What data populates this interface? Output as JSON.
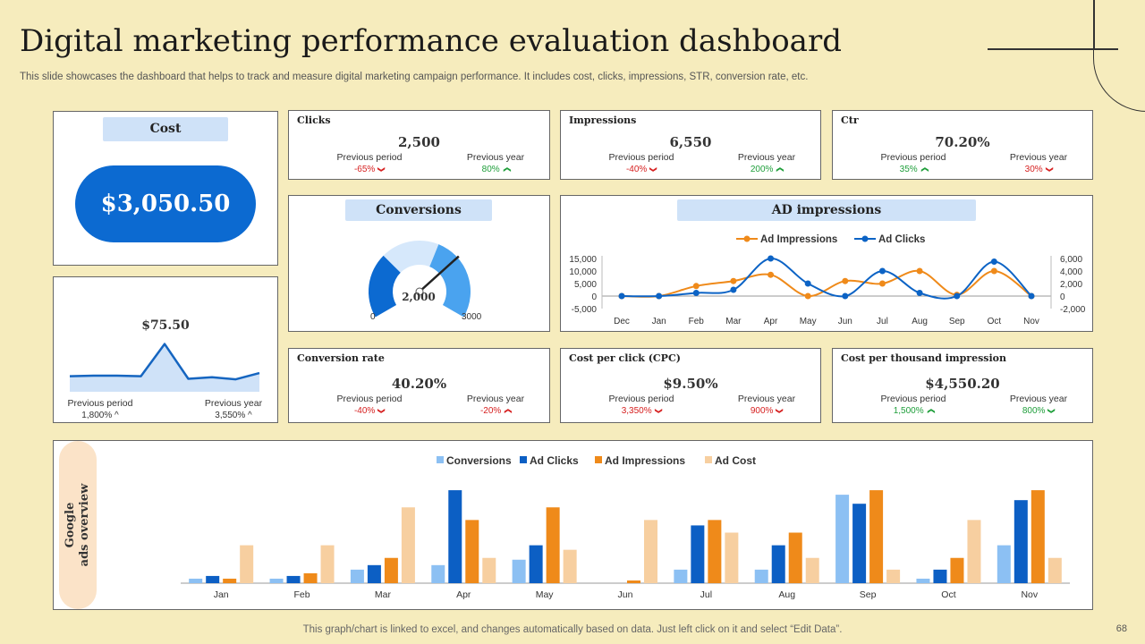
{
  "header": {
    "title": "Digital marketing performance evaluation dashboard",
    "subtitle": "This slide showcases the dashboard that helps to track and measure digital marketing campaign performance. It includes cost, clicks, impressions, STR, conversion rate, etc."
  },
  "cost": {
    "label": "Cost",
    "value": "$3,050.50",
    "color": "#0c6ad1"
  },
  "spark": {
    "value": "$75.50",
    "prev_period_label": "Previous period",
    "prev_period_value": "1,800% ^",
    "prev_year_label": "Previous year",
    "prev_year_value": "3,550% ^",
    "chart_data": {
      "type": "area",
      "values": [
        30,
        31,
        31,
        30,
        92,
        25,
        28,
        24,
        36
      ]
    }
  },
  "kpis": {
    "clicks": {
      "title": "Clicks",
      "value": "2,500",
      "pp_label": "Previous period",
      "pp_value": "-65%",
      "pp_dir": "down",
      "py_label": "Previous year",
      "py_value": "80%",
      "py_dir": "up"
    },
    "impressions": {
      "title": "Impressions",
      "value": "6,550",
      "pp_label": "Previous period",
      "pp_value": "-40%",
      "pp_dir": "down",
      "py_label": "Previous year",
      "py_value": "200%",
      "py_dir": "up"
    },
    "ctr": {
      "title": "Ctr",
      "value": "70.20%",
      "pp_label": "Previous period",
      "pp_value": "35%",
      "pp_dir": "up",
      "py_label": "Previous year",
      "py_value": "30%",
      "py_dir": "down"
    },
    "conv_rate": {
      "title": "Conversion rate",
      "value": "40.20%",
      "pp_label": "Previous period",
      "pp_value": "-40%",
      "pp_dir": "down",
      "py_label": "Previous year",
      "py_value": "-20%",
      "py_dir": "up_red"
    },
    "cpc": {
      "title": "Cost per click (CPC)",
      "value": "$9.50%",
      "pp_label": "Previous period",
      "pp_value": "3,350%",
      "pp_dir": "down",
      "py_label": "Previous year",
      "py_value": "900%",
      "py_dir": "down"
    },
    "cpm": {
      "title": "Cost per thousand impression",
      "value": "$4,550.20",
      "pp_label": "Previous period",
      "pp_value": "1,500%",
      "pp_dir": "up",
      "py_label": "Previous year",
      "py_value": "800%",
      "py_dir": "down_green"
    }
  },
  "conversions": {
    "label": "Conversions",
    "value": "2,000",
    "min": "0",
    "max": "3000",
    "chart_data": {
      "type": "gauge",
      "value": 2000,
      "min": 0,
      "max": 3000
    }
  },
  "ad_impressions": {
    "label": "AD impressions",
    "chart_data": {
      "type": "line",
      "categories": [
        "Dec",
        "Jan",
        "Feb",
        "Mar",
        "Apr",
        "May",
        "Jun",
        "Jul",
        "Aug",
        "Sep",
        "Oct",
        "Nov"
      ],
      "series": [
        {
          "name": "Ad Impressions",
          "axis": "left",
          "color": "#ef8a1a",
          "values": [
            0,
            0,
            4000,
            6000,
            8500,
            0,
            6000,
            5000,
            10000,
            500,
            10000,
            0
          ]
        },
        {
          "name": "Ad Clicks",
          "axis": "right",
          "color": "#0c63c5",
          "values": [
            0,
            0,
            500,
            1000,
            6000,
            2000,
            0,
            4000,
            500,
            0,
            5500,
            0
          ]
        }
      ],
      "ylim_left": [
        -5000,
        15000
      ],
      "ylim_right": [
        -2000,
        6000
      ],
      "yticks_left": [
        "15,000",
        "10,000",
        "5,000",
        "0",
        "-5,000"
      ],
      "yticks_right": [
        "6,000",
        "4,000",
        "2,000",
        "0",
        "-2,000"
      ]
    }
  },
  "google_ads": {
    "label_line1": "Google",
    "label_line2": "ads overview",
    "chart_data": {
      "type": "bar",
      "categories": [
        "Jan",
        "Feb",
        "Mar",
        "Apr",
        "May",
        "Jun",
        "Jul",
        "Aug",
        "Sep",
        "Oct",
        "Nov"
      ],
      "series": [
        {
          "name": "Conversions",
          "color": "#8cc0f3",
          "values": [
            5,
            5,
            15,
            20,
            26,
            0,
            15,
            15,
            98,
            5,
            42
          ]
        },
        {
          "name": "Ad Clicks",
          "color": "#0c5fc4",
          "values": [
            8,
            8,
            20,
            103,
            42,
            0,
            64,
            42,
            88,
            15,
            92
          ]
        },
        {
          "name": "Ad Impressions",
          "color": "#ef8a1a",
          "values": [
            5,
            11,
            28,
            70,
            84,
            3,
            70,
            56,
            103,
            28,
            103
          ]
        },
        {
          "name": "Ad Cost",
          "color": "#f7cfa0",
          "values": [
            42,
            42,
            84,
            28,
            37,
            70,
            56,
            28,
            15,
            70,
            28
          ]
        }
      ],
      "ylim": [
        0,
        110
      ]
    }
  },
  "footer": {
    "note": "This graph/chart is linked to excel,  and changes automatically based on data. Just left click on it and select “Edit Data”.",
    "page": "68"
  }
}
